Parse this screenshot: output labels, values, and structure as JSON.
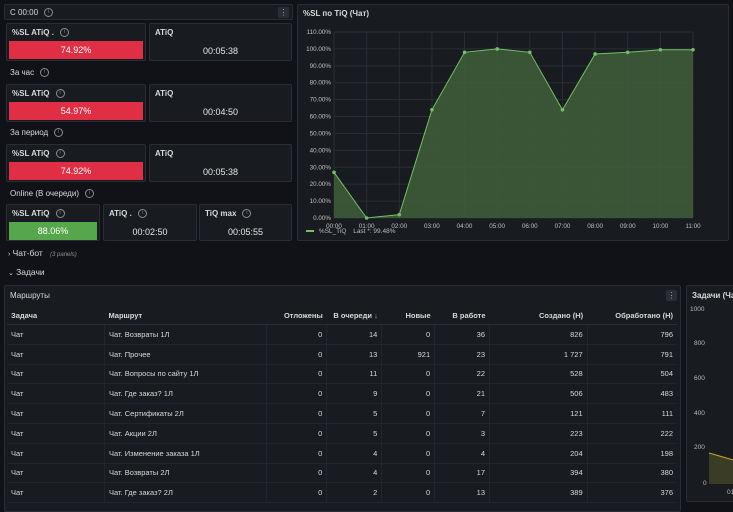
{
  "top_section": {
    "title": "С 00:00"
  },
  "blocks": [
    {
      "pct_label": "%SL ATiQ .",
      "pct_value": "74.92%",
      "atiq_label": "ATiQ",
      "atiq_value": "00:05:38"
    },
    {
      "section": "За час",
      "pct_label": "%SL ATiQ",
      "pct_value": "54.97%",
      "atiq_label": "ATiQ",
      "atiq_value": "00:04:50"
    },
    {
      "section": "За период",
      "pct_label": "%SL ATiQ",
      "pct_value": "74.92%",
      "atiq_label": "ATiQ",
      "atiq_value": "00:05:38"
    }
  ],
  "online": {
    "section": "Online (В очереди)",
    "pct_label": "%SL ATiQ",
    "pct_value": "88.06%",
    "atiq_label": "ATiQ .",
    "atiq_value": "00:02:50",
    "tiq_label": "TiQ max",
    "tiq_value": "00:05:55"
  },
  "chart_panel": {
    "title": "%SL по TiQ (Чат)",
    "legend_label": "%SL_TiQ",
    "legend_last": "Last *: 99.48%"
  },
  "chart_data": {
    "type": "area",
    "x": [
      "00:00",
      "01:00",
      "02:00",
      "03:00",
      "04:00",
      "05:00",
      "06:00",
      "07:00",
      "08:00",
      "09:00",
      "10:00",
      "11:00"
    ],
    "series": [
      {
        "name": "%SL_TiQ",
        "values": [
          27,
          0,
          2,
          64,
          98,
          100,
          98,
          64,
          97,
          98,
          99.5,
          99.5
        ]
      }
    ],
    "yticks": [
      "0.00%",
      "10.00%",
      "20.00%",
      "30.00%",
      "40.00%",
      "50.00%",
      "60.00%",
      "70.00%",
      "80.00%",
      "90.00%",
      "100.00%",
      "110.00%"
    ],
    "ylim": [
      0,
      110
    ],
    "grid": true,
    "color": "#73bf69",
    "fill": "#3f5f39"
  },
  "rows": {
    "chatbot": {
      "label": "Чат-бот",
      "sub": "(3 panels)"
    },
    "tasks": {
      "label": "Задачи"
    }
  },
  "routes": {
    "title": "Маршруты",
    "headers": [
      "Задача",
      "Маршрут",
      "Отложены",
      "В очереди",
      "Новые",
      "В работе",
      "Создано (Н)",
      "Обработано (Н)"
    ],
    "rows": [
      [
        "Чат",
        "Чат. Возвраты 1Л",
        "0",
        "14",
        "0",
        "36",
        "826",
        "796"
      ],
      [
        "Чат",
        "Чат. Прочее",
        "0",
        "13",
        "921",
        "23",
        "1 727",
        "791"
      ],
      [
        "Чат",
        "Чат. Вопросы по сайту 1Л",
        "0",
        "11",
        "0",
        "22",
        "528",
        "504"
      ],
      [
        "Чат",
        "Чат. Где заказ? 1Л",
        "0",
        "9",
        "0",
        "21",
        "506",
        "483"
      ],
      [
        "Чат",
        "Чат. Сертификаты 2Л",
        "0",
        "5",
        "0",
        "7",
        "121",
        "111"
      ],
      [
        "Чат",
        "Чат. Акции 2Л",
        "0",
        "5",
        "0",
        "3",
        "223",
        "222"
      ],
      [
        "Чат",
        "Чат. Изменение заказа 1Л",
        "0",
        "4",
        "0",
        "4",
        "204",
        "198"
      ],
      [
        "Чат",
        "Чат. Возвраты 2Л",
        "0",
        "4",
        "0",
        "17",
        "394",
        "380"
      ],
      [
        "Чат",
        "Чат. Где заказ? 2Л",
        "0",
        "2",
        "0",
        "13",
        "389",
        "376"
      ]
    ]
  },
  "side_panel": {
    "title": "Задачи (Чат",
    "yticks": [
      "1000",
      "800",
      "600",
      "400",
      "200",
      "0"
    ],
    "xtick": "01"
  },
  "colors": {
    "red": "#e02f44",
    "green": "#56a64b",
    "panel": "#181b1f",
    "bg": "#111217"
  }
}
